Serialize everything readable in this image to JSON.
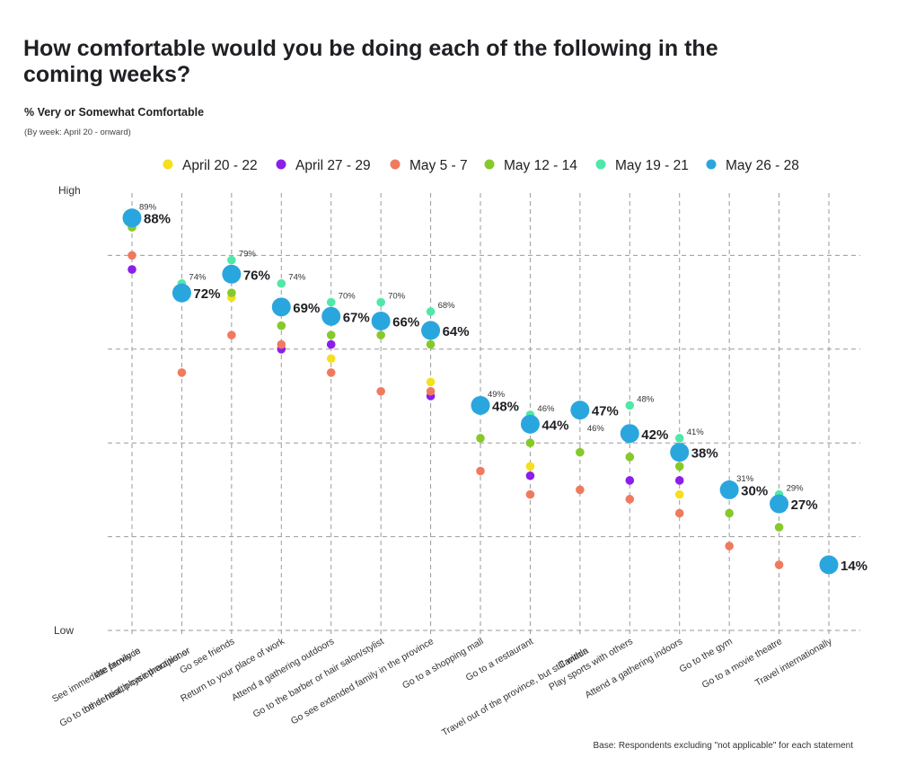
{
  "title": "How comfortable would you be doing each of the following in the coming weeks?",
  "subtitle": "% Very or Somewhat Comfortable",
  "note": "(By week: April 20 - onward)",
  "footnote": "Base: Respondents excluding \"not applicable\" for each statement",
  "colors": {
    "apr20": "#f5df1e",
    "apr27": "#8b1ee8",
    "may5": "#f07a5e",
    "may12": "#86c92a",
    "may19": "#4fe8a8",
    "may26": "#2aa6de"
  },
  "chart_data": {
    "type": "scatter",
    "y_axis_labels": {
      "top": "High",
      "bottom": "Low"
    },
    "ylim": [
      0,
      100
    ],
    "grid": true,
    "legend_placement": "top",
    "categories": [
      [
        "See immediate family in",
        "the province"
      ],
      [
        "Go to the dentist, physiotherapist or",
        "other health-care practitioner"
      ],
      [
        "Go see friends"
      ],
      [
        "Return to your place of work"
      ],
      [
        "Attend a gathering outdoors"
      ],
      [
        "Go to the barber or hair salon/stylist"
      ],
      [
        "Go see extended family in the province"
      ],
      [
        "Go to a shopping mall"
      ],
      [
        "Go to a restaurant"
      ],
      [
        "Travel out of the province, but still within",
        "Canada"
      ],
      [
        "Play sports with others"
      ],
      [
        "Attend a gathering indoors"
      ],
      [
        "Go to the gym"
      ],
      [
        "Go to a movie theatre"
      ],
      [
        "Travel internationally"
      ]
    ],
    "series": [
      {
        "name": "April 20 - 22",
        "key": "apr20",
        "values": [
          null,
          null,
          71,
          null,
          58,
          null,
          53,
          null,
          35,
          null,
          37,
          29,
          null,
          null,
          null
        ]
      },
      {
        "name": "April 27 - 29",
        "key": "apr27",
        "values": [
          77,
          null,
          null,
          60,
          61,
          null,
          50,
          null,
          33,
          null,
          32,
          32,
          null,
          null,
          null
        ]
      },
      {
        "name": "May 5 - 7",
        "key": "may5",
        "values": [
          80,
          55,
          63,
          61,
          55,
          51,
          51,
          34,
          29,
          30,
          28,
          25,
          18,
          14,
          null
        ]
      },
      {
        "name": "May 12 - 14",
        "key": "may12",
        "values": [
          86,
          73,
          72,
          65,
          63,
          63,
          61,
          41,
          40,
          38,
          37,
          35,
          25,
          22,
          null
        ]
      },
      {
        "name": "May 19 - 21",
        "key": "may19",
        "values": [
          89,
          74,
          79,
          74,
          70,
          70,
          68,
          49,
          46,
          46,
          48,
          41,
          31,
          29,
          null
        ]
      },
      {
        "name": "May 26 - 28",
        "key": "may26",
        "values": [
          88,
          72,
          76,
          69,
          67,
          66,
          64,
          48,
          44,
          47,
          42,
          38,
          30,
          27,
          14
        ]
      }
    ],
    "labels_may19": [
      "89%",
      "74%",
      "79%",
      "74%",
      "70%",
      "70%",
      "68%",
      "49%",
      "46%",
      "46%",
      "48%",
      "41%",
      "31%",
      "29%",
      ""
    ],
    "labels_may26": [
      "88%",
      "72%",
      "76%",
      "69%",
      "67%",
      "66%",
      "64%",
      "48%",
      "44%",
      "47%",
      "42%",
      "38%",
      "30%",
      "27%",
      "14%"
    ]
  }
}
